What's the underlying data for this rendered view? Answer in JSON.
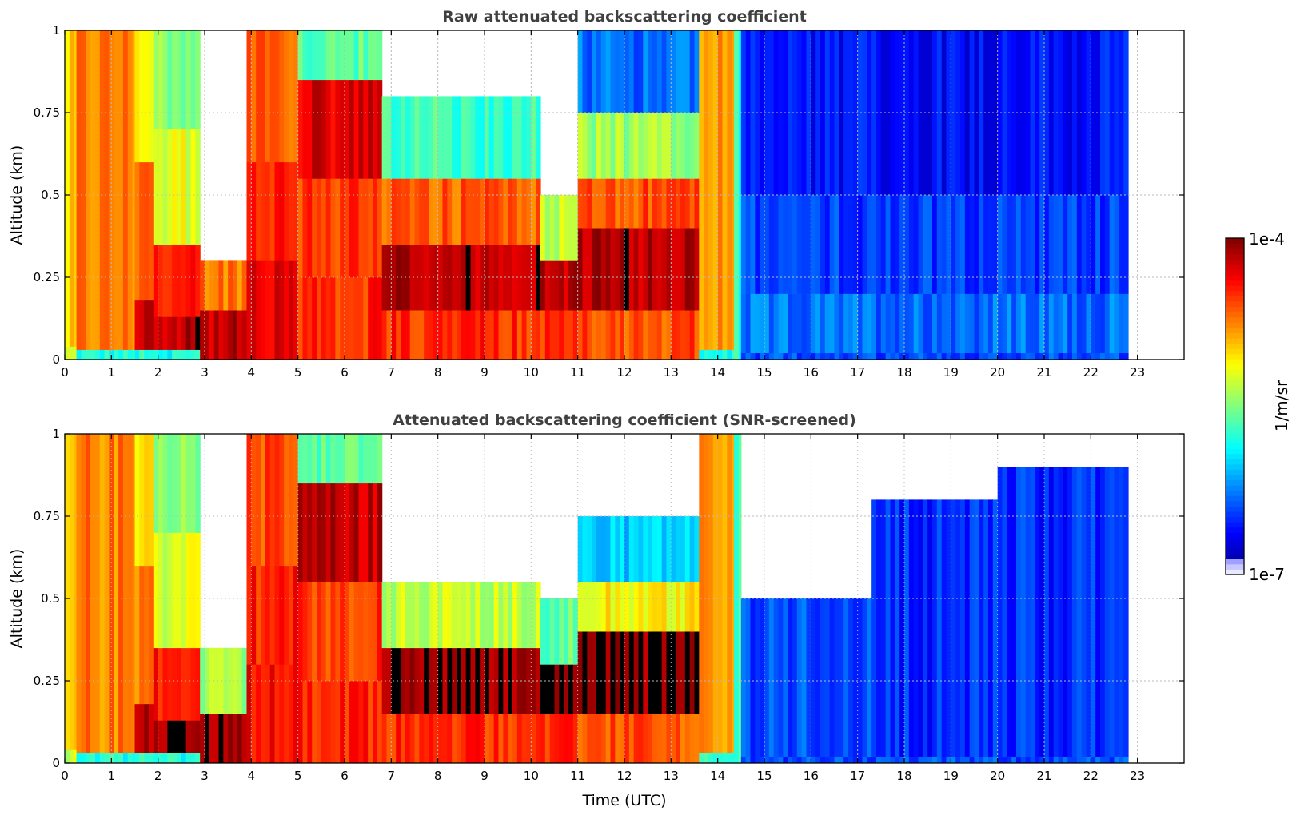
{
  "chart_data": [
    {
      "type": "heatmap",
      "title": "Raw attenuated backscattering coefficient",
      "xlabel": "",
      "ylabel": "Altitude (km)",
      "xlim": [
        0,
        24
      ],
      "ylim": [
        0,
        1
      ],
      "xticks": [
        "0",
        "1",
        "2",
        "3",
        "4",
        "5",
        "6",
        "7",
        "8",
        "9",
        "10",
        "11",
        "12",
        "13",
        "14",
        "15",
        "16",
        "17",
        "18",
        "19",
        "20",
        "21",
        "22",
        "23"
      ],
      "yticks": [
        "0",
        "0.25",
        "0.5",
        "0.75",
        "1"
      ],
      "grid": true,
      "value_scale": "log10 of 1/m/sr",
      "data_extent_hours": [
        0,
        22.8
      ],
      "colormap": "jet",
      "segments": [
        {
          "t0": 0.0,
          "t1": 0.25,
          "bands": [
            [
              0,
              0.04,
              -5.3
            ],
            [
              0.04,
              1,
              -5.05
            ]
          ]
        },
        {
          "t0": 0.25,
          "t1": 1.5,
          "bands": [
            [
              0,
              0.03,
              -5.8
            ],
            [
              0.03,
              1,
              -4.75
            ]
          ]
        },
        {
          "t0": 1.5,
          "t1": 1.9,
          "bands": [
            [
              0,
              0.03,
              -5.8
            ],
            [
              0.03,
              0.18,
              -4.25
            ],
            [
              0.18,
              0.6,
              -4.7
            ],
            [
              0.6,
              1,
              -5.05
            ]
          ]
        },
        {
          "t0": 1.9,
          "t1": 2.9,
          "bands": [
            [
              0,
              0.03,
              -5.8
            ],
            [
              0.03,
              0.13,
              -4.15
            ],
            [
              0.13,
              0.35,
              -4.45
            ],
            [
              0.35,
              0.7,
              -5.2
            ],
            [
              0.7,
              1,
              -5.5
            ]
          ]
        },
        {
          "t0": 2.9,
          "t1": 3.9,
          "bands": [
            [
              0,
              0.15,
              -4.2
            ],
            [
              0.15,
              0.3,
              -4.7
            ],
            [
              0.3,
              1,
              -9
            ]
          ]
        },
        {
          "t0": 3.9,
          "t1": 5.0,
          "bands": [
            [
              0,
              0.3,
              -4.35
            ],
            [
              0.3,
              0.6,
              -4.45
            ],
            [
              0.6,
              1,
              -4.6
            ]
          ]
        },
        {
          "t0": 5.0,
          "t1": 6.8,
          "bands": [
            [
              0,
              0.25,
              -4.5
            ],
            [
              0.25,
              0.55,
              -4.55
            ],
            [
              0.55,
              0.85,
              -4.3
            ],
            [
              0.85,
              1,
              -5.6
            ]
          ]
        },
        {
          "t0": 6.8,
          "t1": 10.2,
          "bands": [
            [
              0,
              0.15,
              -4.5
            ],
            [
              0.15,
              0.35,
              -4.15
            ],
            [
              0.35,
              0.55,
              -4.65
            ],
            [
              0.55,
              0.8,
              -5.7
            ],
            [
              0.8,
              1,
              -9
            ]
          ]
        },
        {
          "t0": 10.2,
          "t1": 11.0,
          "bands": [
            [
              0,
              0.15,
              -4.55
            ],
            [
              0.15,
              0.3,
              -4.2
            ],
            [
              0.3,
              0.5,
              -5.3
            ],
            [
              0.5,
              1,
              -9
            ]
          ]
        },
        {
          "t0": 11.0,
          "t1": 13.6,
          "bands": [
            [
              0,
              0.15,
              -4.6
            ],
            [
              0.15,
              0.4,
              -4.15
            ],
            [
              0.4,
              0.55,
              -4.6
            ],
            [
              0.55,
              0.75,
              -5.4
            ],
            [
              0.75,
              1,
              -6.3
            ]
          ]
        },
        {
          "t0": 13.6,
          "t1": 14.35,
          "bands": [
            [
              0,
              0.03,
              -5.8
            ],
            [
              0.03,
              1,
              -4.85
            ]
          ]
        },
        {
          "t0": 14.35,
          "t1": 14.5,
          "bands": [
            [
              0,
              1,
              -5.7
            ]
          ]
        },
        {
          "t0": 14.5,
          "t1": 22.8,
          "bands": [
            [
              0,
              0.02,
              -6.4
            ],
            [
              0.02,
              0.2,
              -6.3
            ],
            [
              0.2,
              0.5,
              -6.45
            ],
            [
              0.5,
              1,
              -6.6
            ]
          ]
        }
      ]
    },
    {
      "type": "heatmap",
      "title": "Attenuated backscattering coefficient (SNR-screened)",
      "xlabel": "Time (UTC)",
      "ylabel": "Altitude (km)",
      "xlim": [
        0,
        24
      ],
      "ylim": [
        0,
        1
      ],
      "xticks": [
        "0",
        "1",
        "2",
        "3",
        "4",
        "5",
        "6",
        "7",
        "8",
        "9",
        "10",
        "11",
        "12",
        "13",
        "14",
        "15",
        "16",
        "17",
        "18",
        "19",
        "20",
        "21",
        "22",
        "23"
      ],
      "yticks": [
        "0",
        "0.25",
        "0.5",
        "0.75",
        "1"
      ],
      "grid": true,
      "value_scale": "log10 of 1/m/sr",
      "data_extent_hours": [
        0,
        22.8
      ],
      "colormap": "jet",
      "segments": [
        {
          "t0": 0.0,
          "t1": 0.25,
          "bands": [
            [
              0,
              0.04,
              -5.3
            ],
            [
              0.04,
              1,
              -5.05
            ]
          ]
        },
        {
          "t0": 0.25,
          "t1": 1.5,
          "bands": [
            [
              0,
              0.03,
              -5.8
            ],
            [
              0.03,
              1,
              -4.75
            ]
          ]
        },
        {
          "t0": 1.5,
          "t1": 1.9,
          "bands": [
            [
              0,
              0.03,
              -5.8
            ],
            [
              0.03,
              0.18,
              -4.1
            ],
            [
              0.18,
              0.6,
              -4.7
            ],
            [
              0.6,
              1,
              -5.05
            ]
          ]
        },
        {
          "t0": 1.9,
          "t1": 2.9,
          "bands": [
            [
              0,
              0.03,
              -5.8
            ],
            [
              0.03,
              0.13,
              -4.05
            ],
            [
              0.13,
              0.35,
              -4.45
            ],
            [
              0.35,
              0.7,
              -5.2
            ],
            [
              0.7,
              1,
              -5.5
            ]
          ]
        },
        {
          "t0": 2.9,
          "t1": 3.9,
          "bands": [
            [
              0,
              0.15,
              -4.05
            ],
            [
              0.15,
              0.35,
              -5.4
            ],
            [
              0.35,
              1,
              -9
            ]
          ]
        },
        {
          "t0": 3.9,
          "t1": 5.0,
          "bands": [
            [
              0,
              0.3,
              -4.35
            ],
            [
              0.3,
              0.6,
              -4.45
            ],
            [
              0.6,
              1,
              -4.6
            ]
          ]
        },
        {
          "t0": 5.0,
          "t1": 6.8,
          "bands": [
            [
              0,
              0.25,
              -4.5
            ],
            [
              0.25,
              0.55,
              -4.55
            ],
            [
              0.55,
              0.85,
              -4.2
            ],
            [
              0.85,
              1,
              -5.6
            ]
          ]
        },
        {
          "t0": 6.8,
          "t1": 10.2,
          "bands": [
            [
              0,
              0.15,
              -4.5
            ],
            [
              0.15,
              0.35,
              -4.05
            ],
            [
              0.35,
              0.55,
              -5.3
            ],
            [
              0.55,
              1,
              -9
            ]
          ]
        },
        {
          "t0": 10.2,
          "t1": 11.0,
          "bands": [
            [
              0,
              0.15,
              -4.55
            ],
            [
              0.15,
              0.3,
              -4.05
            ],
            [
              0.3,
              0.5,
              -5.6
            ],
            [
              0.5,
              1,
              -9
            ]
          ]
        },
        {
          "t0": 11.0,
          "t1": 13.6,
          "bands": [
            [
              0,
              0.15,
              -4.6
            ],
            [
              0.15,
              0.4,
              -4.05
            ],
            [
              0.4,
              0.55,
              -5.1
            ],
            [
              0.55,
              0.75,
              -6.0
            ],
            [
              0.75,
              1,
              -9
            ]
          ]
        },
        {
          "t0": 13.6,
          "t1": 14.35,
          "bands": [
            [
              0,
              0.03,
              -5.8
            ],
            [
              0.03,
              1,
              -4.85
            ]
          ]
        },
        {
          "t0": 14.35,
          "t1": 14.5,
          "bands": [
            [
              0,
              1,
              -5.7
            ]
          ]
        },
        {
          "t0": 14.5,
          "t1": 17.3,
          "bands": [
            [
              0,
              0.02,
              -6.4
            ],
            [
              0.02,
              0.5,
              -6.4
            ],
            [
              0.5,
              1,
              -9
            ]
          ]
        },
        {
          "t0": 17.3,
          "t1": 20.0,
          "bands": [
            [
              0,
              0.02,
              -6.4
            ],
            [
              0.02,
              0.8,
              -6.5
            ],
            [
              0.8,
              1,
              -9
            ]
          ]
        },
        {
          "t0": 20.0,
          "t1": 22.8,
          "bands": [
            [
              0,
              0.02,
              -6.4
            ],
            [
              0.02,
              0.9,
              -6.5
            ],
            [
              0.9,
              1,
              -9
            ]
          ]
        }
      ]
    }
  ],
  "colorbar": {
    "label": "1/m/sr",
    "max_label": "1e-4",
    "min_label": "1e-7",
    "log_min": -7,
    "log_max": -4
  }
}
